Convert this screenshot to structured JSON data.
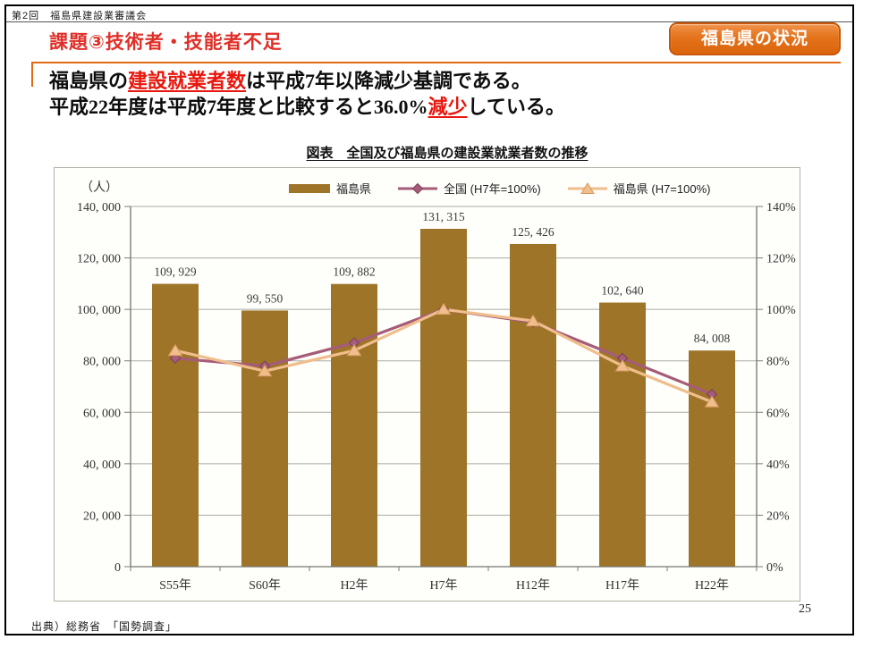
{
  "header": {
    "meeting_label": "第2回　福島県建設業審議会"
  },
  "title": "課題③技術者・技能者不足",
  "badge": {
    "label": "福島県の状況"
  },
  "summary": {
    "line1": {
      "pre": "福島県の",
      "em": "建設就業者数",
      "post": "は平成7年以降減少基調である。"
    },
    "line2": {
      "pre": "平成22年度は平成7年度と比較すると36.0%",
      "em": "減少",
      "post": "している。"
    }
  },
  "chart": {
    "title": "図表　全国及び福島県の建設業就業者数の推移"
  },
  "chart_data": {
    "type": "bar+line",
    "title": "図表　全国及び福島県の建設業就業者数の推移",
    "categories": [
      "S55年",
      "S60年",
      "H2年",
      "H7年",
      "H12年",
      "H17年",
      "H22年"
    ],
    "bar_series": {
      "name": "福島県",
      "axis": "left",
      "values": [
        109929,
        99550,
        109882,
        131315,
        125426,
        102640,
        84008
      ],
      "labels": [
        "109, 929",
        "99, 550",
        "109, 882",
        "131, 315",
        "125, 426",
        "102, 640",
        "84, 008"
      ],
      "color": "#9E7429"
    },
    "line_series": [
      {
        "name": "全国 (H7年=100%)",
        "axis": "right",
        "values": [
          81,
          78,
          87,
          100,
          95,
          81,
          67
        ],
        "color": "#A55C78",
        "marker": "diamond",
        "marker_edge": "#7E3F5B"
      },
      {
        "name": "福島県 (H7=100%)",
        "axis": "right",
        "values": [
          84,
          76,
          84,
          100,
          95.5,
          78,
          64
        ],
        "color": "#EFBE8C",
        "marker": "triangle",
        "marker_edge": "#D89A5E"
      }
    ],
    "left_axis": {
      "unit": "（人）",
      "min": 0,
      "max": 140000,
      "tick_labels": [
        "140, 000",
        "120, 000",
        "100, 000",
        "80, 000",
        "60, 000",
        "40, 000",
        "20, 000",
        "0"
      ]
    },
    "right_axis": {
      "min": 0,
      "max": 140,
      "tick_labels": [
        "140%",
        "120%",
        "100%",
        "80%",
        "60%",
        "40%",
        "20%",
        "0%"
      ]
    },
    "grid": true,
    "legend_position": "top"
  },
  "footer": {
    "source": "出典）総務省　「国勢調査」",
    "page": "25"
  }
}
